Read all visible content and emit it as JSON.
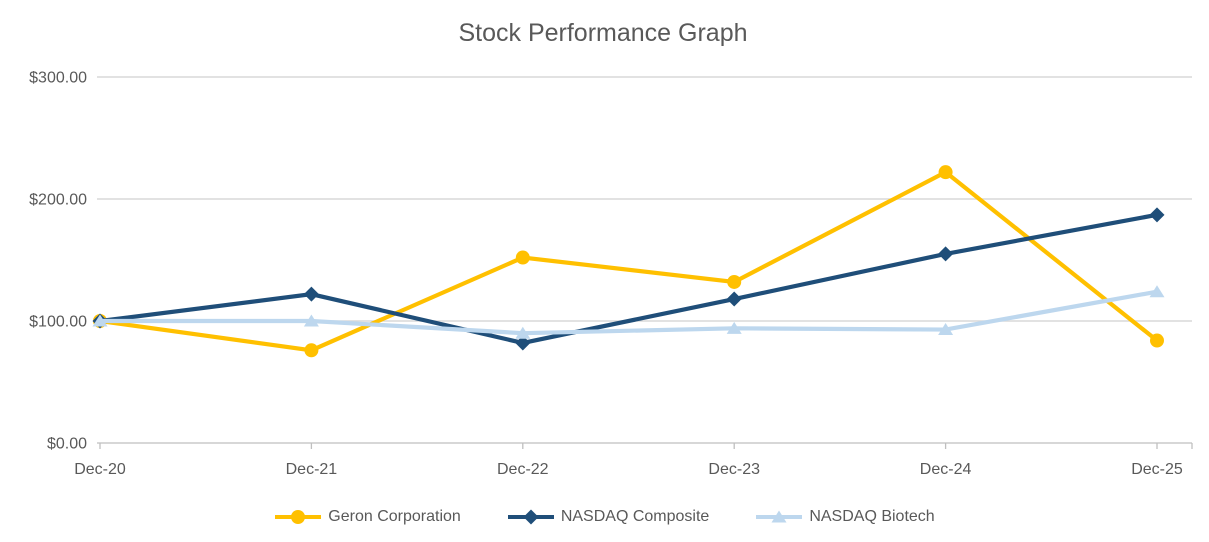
{
  "chart_data": {
    "type": "line",
    "title": "Stock Performance Graph",
    "categories": [
      "Dec-20",
      "Dec-21",
      "Dec-22",
      "Dec-23",
      "Dec-24",
      "Dec-25"
    ],
    "series": [
      {
        "name": "Geron Corporation",
        "color": "#FFC000",
        "marker": "circle",
        "values": [
          100,
          76,
          152,
          132,
          222,
          84
        ]
      },
      {
        "name": "NASDAQ Composite",
        "color": "#1F4E79",
        "marker": "diamond",
        "values": [
          100,
          122,
          82,
          118,
          155,
          187
        ]
      },
      {
        "name": "NASDAQ Biotech",
        "color": "#BDD7EE",
        "marker": "triangle",
        "values": [
          100,
          100,
          90,
          94,
          93,
          124
        ]
      }
    ],
    "y_axis": {
      "range": [
        0,
        300
      ],
      "ticks": [
        0,
        100,
        200,
        300
      ],
      "tick_labels": [
        "$0.00",
        "$100.00",
        "$200.00",
        "$300.00"
      ]
    },
    "x_axis": {
      "tick_labels": [
        "Dec-20",
        "Dec-21",
        "Dec-22",
        "Dec-23",
        "Dec-24",
        "Dec-25"
      ]
    },
    "grid": true,
    "legend_position": "bottom",
    "colors": {
      "text": "#595959",
      "gridline": "#D9D9D9",
      "axis_line": "#BFBFBF"
    }
  }
}
